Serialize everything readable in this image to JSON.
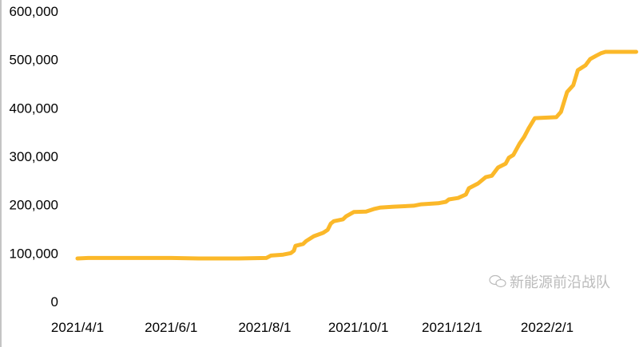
{
  "chart_data": {
    "type": "line",
    "title": "",
    "xlabel": "",
    "ylabel": "",
    "xlim": [
      "2021-04-01",
      "2022-03-31"
    ],
    "ylim": [
      0,
      600000
    ],
    "y_ticks": [
      0,
      100000,
      200000,
      300000,
      400000,
      500000,
      600000
    ],
    "y_tick_labels": [
      "0",
      "100,000",
      "200,000",
      "300,000",
      "400,000",
      "500,000",
      "600,000"
    ],
    "x_ticks": [
      "2021-04-01",
      "2021-06-01",
      "2021-08-01",
      "2021-10-01",
      "2021-12-01",
      "2022-02-01"
    ],
    "x_tick_labels": [
      "2021/4/1",
      "2021/6/1",
      "2021/8/1",
      "2021/10/1",
      "2021/12/1",
      "2022/2/1"
    ],
    "grid": false,
    "legend": "none",
    "color": "#FBB829",
    "series": [
      {
        "x": [
          "2021-04-01",
          "2021-04-08",
          "2021-06-01",
          "2021-06-19",
          "2021-07-15",
          "2021-08-02",
          "2021-08-05",
          "2021-08-13",
          "2021-08-18",
          "2021-08-20",
          "2021-08-21",
          "2021-08-26",
          "2021-08-28",
          "2021-09-02",
          "2021-09-08",
          "2021-09-11",
          "2021-09-13",
          "2021-09-15",
          "2021-09-21",
          "2021-09-23",
          "2021-09-28",
          "2021-10-06",
          "2021-10-11",
          "2021-10-15",
          "2021-10-24",
          "2021-11-06",
          "2021-11-11",
          "2021-11-22",
          "2021-11-27",
          "2021-11-29",
          "2021-12-05",
          "2021-12-10",
          "2021-12-12",
          "2021-12-18",
          "2021-12-23",
          "2021-12-27",
          "2021-12-31",
          "2022-01-05",
          "2022-01-07",
          "2022-01-10",
          "2022-01-14",
          "2022-01-17",
          "2022-01-20",
          "2022-01-24",
          "2022-02-07",
          "2022-02-10",
          "2022-02-14",
          "2022-02-18",
          "2022-02-21",
          "2022-02-26",
          "2022-03-01",
          "2022-03-05",
          "2022-03-08",
          "2022-03-11",
          "2022-03-31"
        ],
        "y": [
          89000,
          90000,
          90000,
          89000,
          89000,
          90000,
          95000,
          97000,
          100000,
          105000,
          115000,
          119000,
          125000,
          135000,
          142000,
          148000,
          161000,
          166000,
          170000,
          176000,
          185000,
          186000,
          191000,
          194000,
          196000,
          198000,
          201000,
          203000,
          206000,
          211000,
          214000,
          221000,
          234000,
          244000,
          257000,
          260000,
          277000,
          285000,
          297000,
          303000,
          326000,
          340000,
          358000,
          379000,
          381000,
          392000,
          433000,
          447000,
          478000,
          488000,
          501000,
          508000,
          513000,
          516000,
          516000
        ]
      }
    ]
  },
  "watermark": {
    "text": "新能源前沿战队",
    "icon": "wechat-icon"
  }
}
